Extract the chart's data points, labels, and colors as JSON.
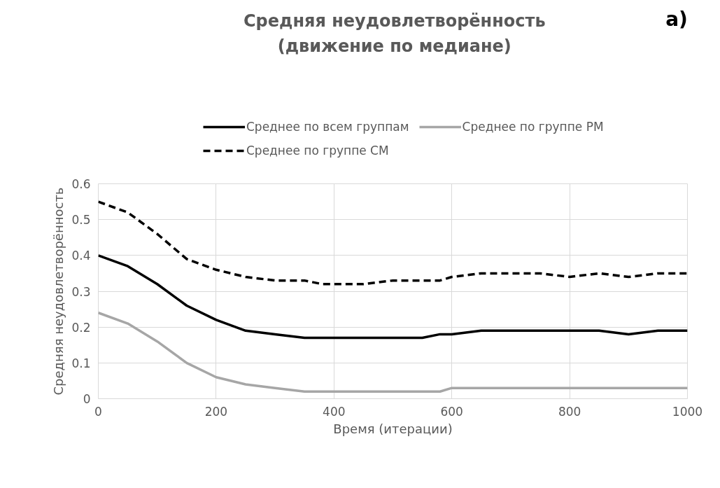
{
  "chart_data": {
    "type": "line",
    "title": "Средняя неудовлетворённость\n(движение по медиане)",
    "xlabel": "Время (итерации)",
    "ylabel": "Средняя неудовлетворённость",
    "annotations": [
      "а)"
    ],
    "x": [
      0,
      50,
      100,
      150,
      200,
      250,
      300,
      350,
      380,
      400,
      450,
      500,
      550,
      580,
      600,
      650,
      680,
      700,
      750,
      800,
      850,
      900,
      950,
      1000
    ],
    "series": [
      {
        "name": "Среднее по всем группам",
        "color": "#000000",
        "line_style": "solid",
        "values": [
          0.4,
          0.37,
          0.32,
          0.26,
          0.22,
          0.19,
          0.18,
          0.17,
          0.17,
          0.17,
          0.17,
          0.17,
          0.17,
          0.18,
          0.18,
          0.19,
          0.19,
          0.19,
          0.19,
          0.19,
          0.19,
          0.18,
          0.19,
          0.19
        ]
      },
      {
        "name": "Среднее по группе СМ",
        "color": "#000000",
        "line_style": "dashed",
        "values": [
          0.55,
          0.52,
          0.46,
          0.39,
          0.36,
          0.34,
          0.33,
          0.33,
          0.32,
          0.32,
          0.32,
          0.33,
          0.33,
          0.33,
          0.34,
          0.35,
          0.35,
          0.35,
          0.35,
          0.34,
          0.35,
          0.34,
          0.35,
          0.35
        ]
      },
      {
        "name": "Среднее по группе РМ",
        "color": "#a6a6a6",
        "line_style": "solid",
        "values": [
          0.24,
          0.21,
          0.16,
          0.1,
          0.06,
          0.04,
          0.03,
          0.02,
          0.02,
          0.02,
          0.02,
          0.02,
          0.02,
          0.02,
          0.03,
          0.03,
          0.03,
          0.03,
          0.03,
          0.03,
          0.03,
          0.03,
          0.03,
          0.03
        ]
      }
    ],
    "xlim": [
      0,
      1000
    ],
    "xticks": [
      0,
      200,
      400,
      600,
      800,
      1000
    ],
    "ylim": [
      0,
      0.6
    ],
    "yticks": [
      0,
      0.1,
      0.2,
      0.3,
      0.4,
      0.5,
      0.6
    ],
    "grid": true,
    "legend": "top",
    "marker": "none"
  }
}
